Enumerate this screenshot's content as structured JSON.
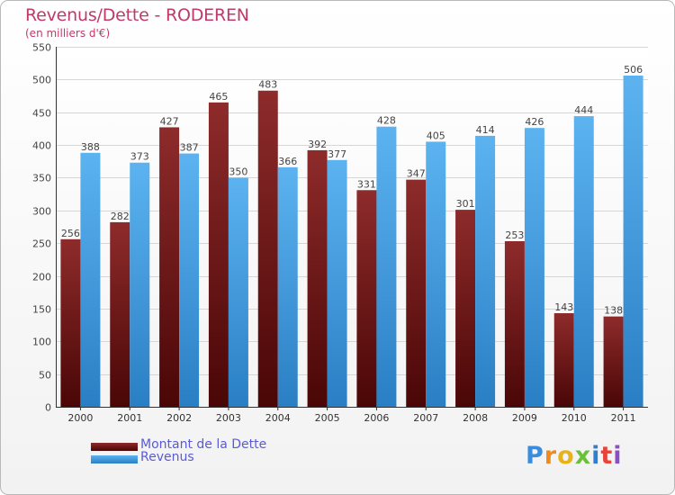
{
  "chart_data": {
    "type": "bar",
    "title": "Revenus/Dette - RODEREN",
    "subtitle": "(en milliers d'€)",
    "categories": [
      "2000",
      "2001",
      "2002",
      "2003",
      "2004",
      "2005",
      "2006",
      "2007",
      "2008",
      "2009",
      "2010",
      "2011"
    ],
    "series": [
      {
        "name": "Montant de la Dette",
        "color": "#7a1d1d",
        "values": [
          256,
          282,
          427,
          465,
          483,
          392,
          331,
          347,
          301,
          253,
          143,
          138
        ]
      },
      {
        "name": "Revenus",
        "color": "#4aa3e8",
        "values": [
          388,
          373,
          387,
          350,
          366,
          377,
          428,
          405,
          414,
          426,
          444,
          506
        ]
      }
    ],
    "ylim": [
      0,
      550
    ],
    "yticks": [
      0,
      50,
      100,
      150,
      200,
      250,
      300,
      350,
      400,
      450,
      500,
      550
    ],
    "grid": true,
    "legend_position": "bottom-left"
  },
  "branding": {
    "logo_text": "Proxiti"
  }
}
